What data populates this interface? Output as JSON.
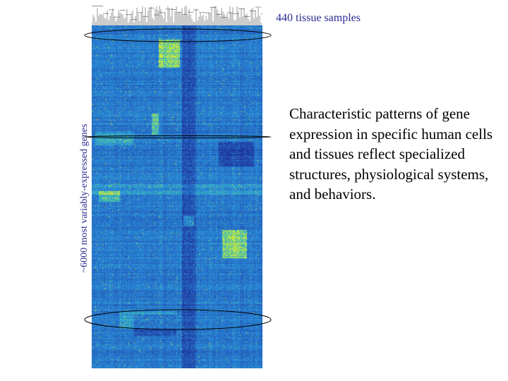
{
  "figure": {
    "column_label": "440 tissue samples",
    "row_label": "~6000 most variably-expressed genes",
    "caption": "Characteristic patterns of gene expression in specific human cells and tissues reflect specialized structures, physiological systems, and behaviors."
  },
  "colors": {
    "low": "#1e2f9a",
    "mid": "#2a8fdc",
    "high": "#f2f01e",
    "label_text": "#2b2b8f",
    "dendrogram": "#555555"
  }
}
